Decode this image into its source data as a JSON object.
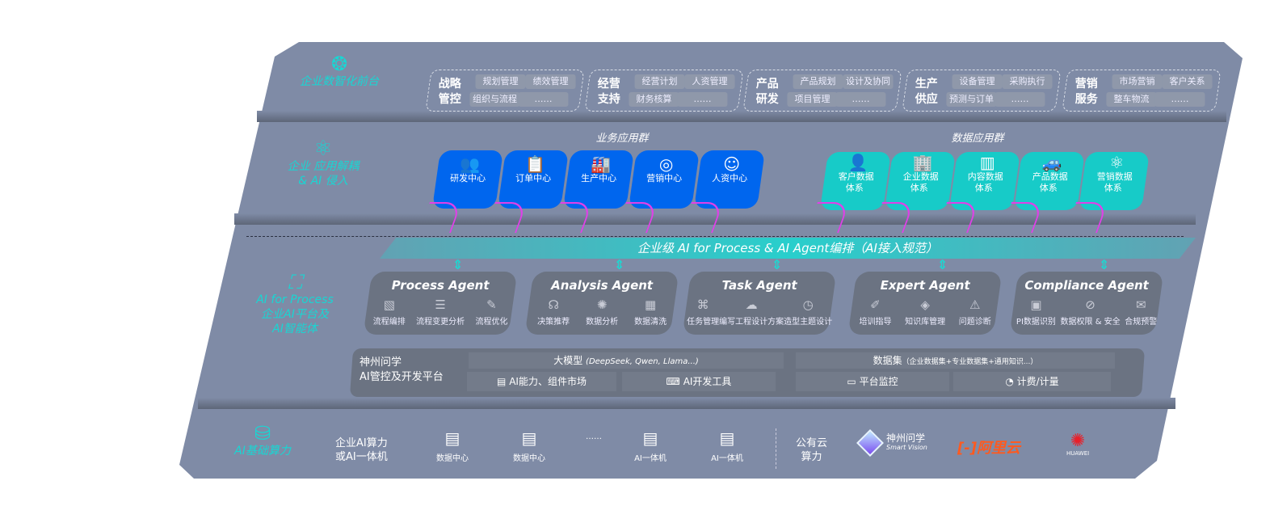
{
  "layers": {
    "frontend": {
      "label": "企业数智化前台",
      "icon": "brain-icon",
      "groups": [
        {
          "title": [
            "战略",
            "管控"
          ],
          "items": [
            "规划管理",
            "绩效管理",
            "组织与流程",
            "……"
          ]
        },
        {
          "title": [
            "经营",
            "支持"
          ],
          "items": [
            "经营计划",
            "人资管理",
            "财务核算",
            "……"
          ]
        },
        {
          "title": [
            "产品",
            "研发"
          ],
          "items": [
            "产品规划",
            "设计及协同",
            "项目管理",
            "……"
          ]
        },
        {
          "title": [
            "生产",
            "供应"
          ],
          "items": [
            "设备管理",
            "采购执行",
            "预测与订单",
            "……"
          ]
        },
        {
          "title": [
            "营销",
            "服务"
          ],
          "items": [
            "市场营销",
            "客户关系",
            "整车物流",
            "……"
          ]
        }
      ]
    },
    "apps": {
      "label": [
        "企业 应用解耦",
        "& AI 侵入"
      ],
      "icon": "molecule-icon",
      "business_title": "业务应用群",
      "business": [
        "研发中心",
        "订单中心",
        "生产中心",
        "营销中心",
        "人资中心"
      ],
      "data_title": "数据应用群",
      "data": [
        [
          "客户数据",
          "体系"
        ],
        [
          "企业数据",
          "体系"
        ],
        [
          "内容数据",
          "体系"
        ],
        [
          "产品数据",
          "体系"
        ],
        [
          "营销数据",
          "体系"
        ]
      ],
      "colors": {
        "business": "#0066ee",
        "data": "#17cbc8",
        "connector": "#e040e8"
      }
    },
    "ai": {
      "label": [
        "AI for Process",
        "企业AI平台及",
        "AI智能体"
      ],
      "icon": "face-scan-icon",
      "banner": "企业级 AI for Process & AI Agent编排（AI接入规范）",
      "agents": [
        {
          "name": "Process Agent",
          "items": [
            "流程编排",
            "流程变更分析",
            "流程优化"
          ]
        },
        {
          "name": "Analysis Agent",
          "items": [
            "决策推荐",
            "数据分析",
            "数据清洗"
          ]
        },
        {
          "name": "Task Agent",
          "items": [
            "任务管理",
            "编写工程设计方案",
            "造型主题设计"
          ]
        },
        {
          "name": "Expert Agent",
          "items": [
            "培训指导",
            "知识库管理",
            "问题诊断"
          ]
        },
        {
          "name": "Compliance Agent",
          "items": [
            "PI数据识别",
            "数据权限 & 安全",
            "合规预警"
          ]
        }
      ],
      "platform": {
        "title": [
          "神州问学",
          "AI管控及开发平台"
        ],
        "model": "大模型",
        "model_note": "(DeepSeek, Qwen, Llama...)",
        "dataset": "数据集",
        "dataset_note": "（企业数据集+专业数据集+通用知识...）",
        "tools": [
          "AI能力、组件市场",
          "AI开发工具",
          "平台监控",
          "计费/计量"
        ]
      }
    },
    "compute": {
      "label": "AI基础算力",
      "icon": "database-icon",
      "private_title": [
        "企业AI算力",
        "或AI一体机"
      ],
      "servers": [
        "数据中心",
        "数据中心",
        "……",
        "AI一体机",
        "AI一体机"
      ],
      "public_title": [
        "公有云",
        "算力"
      ],
      "vendors": {
        "smartvision": "神州问学",
        "smartvision_en": "Smart Vision",
        "aliyun": "阿里云",
        "huawei": "HUAWEI"
      }
    }
  }
}
